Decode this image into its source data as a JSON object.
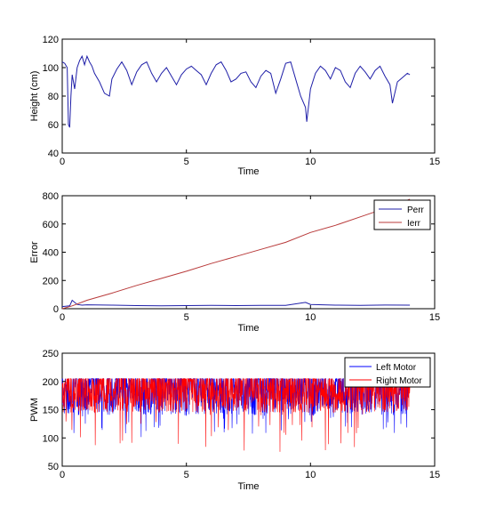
{
  "chart_data": [
    {
      "type": "line",
      "xlabel": "Time",
      "ylabel": "Height (cm)",
      "xlim": [
        0,
        15
      ],
      "ylim": [
        40,
        120
      ],
      "xticks": [
        "0",
        "5",
        "10",
        "15"
      ],
      "yticks": [
        "40",
        "60",
        "80",
        "100",
        "120"
      ],
      "series": [
        {
          "color": "#1f1fa8",
          "x": [
            0,
            0.1,
            0.2,
            0.25,
            0.3,
            0.35,
            0.4,
            0.5,
            0.6,
            0.7,
            0.8,
            0.9,
            1.0,
            1.1,
            1.2,
            1.3,
            1.5,
            1.7,
            1.9,
            2.0,
            2.2,
            2.4,
            2.6,
            2.8,
            3.0,
            3.2,
            3.4,
            3.6,
            3.8,
            4.0,
            4.2,
            4.4,
            4.6,
            4.8,
            5.0,
            5.2,
            5.4,
            5.6,
            5.8,
            6.0,
            6.2,
            6.4,
            6.6,
            6.8,
            7.0,
            7.2,
            7.4,
            7.6,
            7.8,
            8.0,
            8.2,
            8.4,
            8.6,
            8.8,
            9.0,
            9.2,
            9.4,
            9.6,
            9.8,
            9.85,
            10.0,
            10.2,
            10.4,
            10.6,
            10.8,
            11.0,
            11.2,
            11.4,
            11.6,
            11.8,
            12.0,
            12.2,
            12.4,
            12.6,
            12.8,
            13.0,
            13.2,
            13.3,
            13.5,
            13.7,
            13.9,
            14.0
          ],
          "y": [
            104,
            103,
            100,
            60,
            58,
            80,
            95,
            85,
            100,
            105,
            108,
            102,
            108,
            104,
            101,
            96,
            90,
            82,
            80,
            92,
            99,
            104,
            98,
            88,
            97,
            102,
            104,
            96,
            90,
            96,
            100,
            94,
            88,
            95,
            99,
            101,
            98,
            95,
            88,
            96,
            102,
            104,
            98,
            90,
            92,
            96,
            97,
            90,
            86,
            94,
            98,
            96,
            82,
            92,
            103,
            104,
            92,
            80,
            72,
            62,
            85,
            96,
            101,
            98,
            92,
            100,
            98,
            90,
            86,
            96,
            101,
            97,
            92,
            98,
            101,
            94,
            88,
            75,
            90,
            93,
            96,
            95
          ]
        }
      ]
    },
    {
      "type": "line",
      "xlabel": "Time",
      "ylabel": "Error",
      "xlim": [
        0,
        15
      ],
      "ylim": [
        0,
        800
      ],
      "xticks": [
        "0",
        "5",
        "10",
        "15"
      ],
      "yticks": [
        "0",
        "200",
        "400",
        "600",
        "800"
      ],
      "legend": "top-right",
      "series": [
        {
          "name": "Perr",
          "color": "#1f1fa8",
          "x": [
            0,
            0.3,
            0.4,
            0.6,
            0.8,
            1.0,
            2.0,
            3.0,
            4.0,
            5.0,
            6.0,
            7.0,
            8.0,
            9.0,
            9.8,
            10.0,
            11.0,
            12.0,
            13.0,
            14.0
          ],
          "y": [
            15,
            20,
            60,
            30,
            25,
            28,
            25,
            22,
            20,
            22,
            24,
            22,
            24,
            24,
            45,
            30,
            25,
            24,
            26,
            25
          ]
        },
        {
          "name": "Ierr",
          "color": "#b83a3a",
          "x": [
            0,
            0.4,
            1.0,
            2.0,
            3.0,
            4.0,
            5.0,
            6.0,
            7.0,
            8.0,
            9.0,
            10.0,
            11.0,
            12.0,
            13.0,
            14.0
          ],
          "y": [
            0,
            20,
            60,
            110,
            165,
            215,
            265,
            320,
            370,
            420,
            470,
            540,
            590,
            650,
            710,
            775
          ]
        }
      ]
    },
    {
      "type": "line",
      "xlabel": "Time",
      "ylabel": "PWM",
      "xlim": [
        0,
        15
      ],
      "ylim": [
        50,
        250
      ],
      "xticks": [
        "0",
        "5",
        "10",
        "15"
      ],
      "yticks": [
        "50",
        "100",
        "150",
        "200",
        "250"
      ],
      "legend": "top-right",
      "series": [
        {
          "name": "Left Motor",
          "color": "#0000ff",
          "x_range": [
            0,
            14
          ],
          "y_min_typical": 140,
          "y_max": 205,
          "y_min_extreme": 100
        },
        {
          "name": "Right Motor",
          "color": "#ff0000",
          "x_range": [
            0,
            14
          ],
          "y_min_typical": 145,
          "y_max": 205,
          "y_min_extreme": 75
        }
      ]
    }
  ]
}
